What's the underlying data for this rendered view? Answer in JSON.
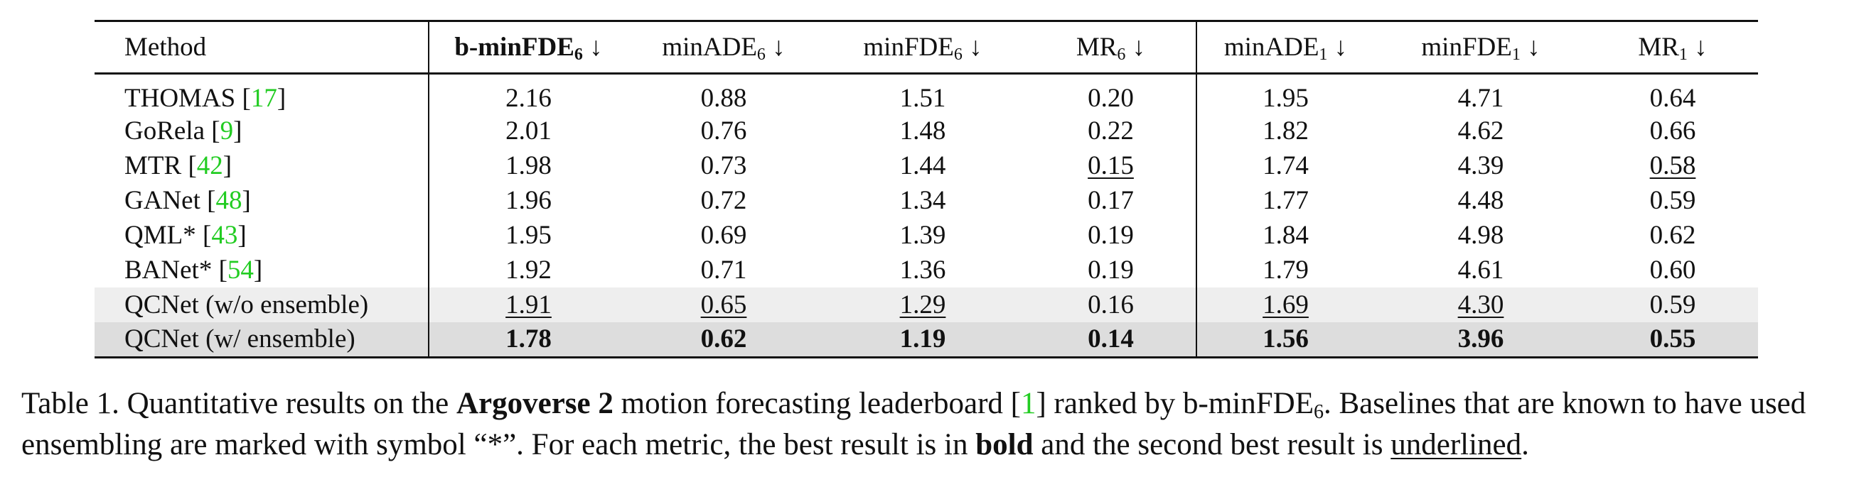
{
  "table": {
    "headers": [
      {
        "base": "Method",
        "sub": "",
        "arrow": ""
      },
      {
        "base": "b-minFDE",
        "sub": "6",
        "arrow": " ↓"
      },
      {
        "base": "minADE",
        "sub": "6",
        "arrow": " ↓"
      },
      {
        "base": "minFDE",
        "sub": "6",
        "arrow": " ↓"
      },
      {
        "base": "MR",
        "sub": "6",
        "arrow": " ↓"
      },
      {
        "base": "minADE",
        "sub": "1",
        "arrow": " ↓"
      },
      {
        "base": "minFDE",
        "sub": "1",
        "arrow": " ↓"
      },
      {
        "base": "MR",
        "sub": "1",
        "arrow": " ↓"
      }
    ],
    "rows": [
      {
        "name": "THOMAS",
        "cite": "17",
        "values": [
          "2.16",
          "0.88",
          "1.51",
          "0.20",
          "1.95",
          "4.71",
          "0.64"
        ]
      },
      {
        "name": "GoRela",
        "cite": "9",
        "values": [
          "2.01",
          "0.76",
          "1.48",
          "0.22",
          "1.82",
          "4.62",
          "0.66"
        ]
      },
      {
        "name": "MTR",
        "cite": "42",
        "values": [
          "1.98",
          "0.73",
          "1.44",
          "0.15",
          "1.74",
          "4.39",
          "0.58"
        ]
      },
      {
        "name": "GANet",
        "cite": "48",
        "values": [
          "1.96",
          "0.72",
          "1.34",
          "0.17",
          "1.77",
          "4.48",
          "0.59"
        ]
      },
      {
        "name": "QML*",
        "cite": "43",
        "values": [
          "1.95",
          "0.69",
          "1.39",
          "0.19",
          "1.84",
          "4.98",
          "0.62"
        ]
      },
      {
        "name": "BANet*",
        "cite": "54",
        "values": [
          "1.92",
          "0.71",
          "1.36",
          "0.19",
          "1.79",
          "4.61",
          "0.60"
        ]
      },
      {
        "name": "QCNet (w/o ensemble)",
        "cite": "",
        "values": [
          "1.91",
          "0.65",
          "1.29",
          "0.16",
          "1.69",
          "4.30",
          "0.59"
        ]
      },
      {
        "name": "QCNet (w/ ensemble)",
        "cite": "",
        "values": [
          "1.78",
          "0.62",
          "1.19",
          "0.14",
          "1.56",
          "3.96",
          "0.55"
        ]
      }
    ]
  },
  "caption": {
    "t1": "Table 1.  Quantitative results on the ",
    "b1": "Argoverse 2",
    "t2": " motion forecasting leaderboard [",
    "cite": "1",
    "t3": "] ranked by b-minFDE",
    "sub": "6",
    "t4": ".  Baselines that are known to have used ensembling are marked with symbol “*”. For each metric, the best result is in ",
    "b2": "bold",
    "t5": " and the second best result is ",
    "u1": "underlined",
    "t6": "."
  }
}
